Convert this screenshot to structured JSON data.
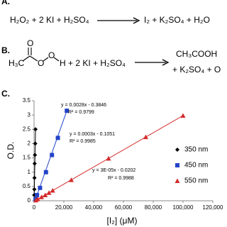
{
  "panels": {
    "a": "A.",
    "b": "B.",
    "c": "C."
  },
  "equation_a": {
    "reactants": "H₂O₂ + 2 KI + H₂SO₄",
    "products": "I₂ + K₂SO₄ + H₂O"
  },
  "equation_b": {
    "atoms": [
      "H₃C",
      "O",
      "O",
      "O",
      "H"
    ],
    "reactants": "+ 2 KI + H₂SO₄",
    "products_line1": "CH₃COOH",
    "products_line2": "+ K₂SO₄ + O"
  },
  "chart_data": {
    "type": "scatter",
    "xlabel": "[I₂] (μM)",
    "ylabel": "O.D.",
    "xlim": [
      0,
      120000
    ],
    "ylim": [
      0,
      3.5
    ],
    "xticks": [
      0,
      {
        "value": 20000,
        "label": "20,000"
      },
      {
        "value": 40000,
        "label": "40,000"
      },
      {
        "value": 60000,
        "label": "60,000"
      },
      {
        "value": 80000,
        "label": "80,000"
      },
      {
        "value": 100000,
        "label": "100,000"
      },
      {
        "value": 120000,
        "label": "120,000"
      }
    ],
    "yticks": [
      0,
      0.5,
      1,
      1.5,
      2,
      2.5,
      3,
      3.5
    ],
    "legend": "right",
    "series": [
      {
        "name": "350 nm",
        "color": "#000000",
        "marker": "diamond",
        "x": [
          100,
          200,
          300,
          400,
          600,
          800,
          1000
        ],
        "values": [
          0.2,
          0.4,
          0.8,
          1.3,
          1.6,
          2.0,
          2.5
        ]
      },
      {
        "name": "450 nm",
        "color": "#2444c8",
        "marker": "square",
        "x": [
          1000,
          2000,
          4000,
          8000,
          12000,
          16000,
          22000
        ],
        "values": [
          0.05,
          0.2,
          0.45,
          1.0,
          1.6,
          2.2,
          3.15
        ]
      },
      {
        "name": "550 nm",
        "color": "#d42a2a",
        "marker": "triangle",
        "x": [
          1250,
          2500,
          5000,
          7500,
          10000,
          12500,
          25000,
          50000,
          75000,
          100000
        ],
        "values": [
          0.02,
          0.06,
          0.13,
          0.2,
          0.28,
          0.36,
          0.73,
          1.48,
          2.23,
          2.98
        ]
      }
    ],
    "annotations": [
      {
        "text": "y = 0.0028x - 0.3846",
        "color": "#000000"
      },
      {
        "text": "R² = 0.9799",
        "color": "#000000"
      },
      {
        "text": "y = 0.0003x - 0.1051",
        "color": "#2444c8"
      },
      {
        "text": "R² = 0.9985",
        "color": "#2444c8"
      },
      {
        "text": "y = 3E-05x - 0.0202",
        "color": "#d42a2a"
      },
      {
        "text": "R² = 0.9988",
        "color": "#d42a2a"
      }
    ]
  }
}
